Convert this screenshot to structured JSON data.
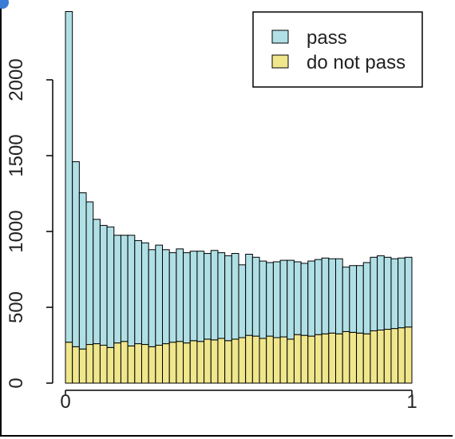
{
  "chart_data": {
    "type": "bar",
    "stacked": true,
    "title": "",
    "xlabel": "",
    "ylabel": "",
    "xlim": [
      0,
      1
    ],
    "ylim": [
      0,
      2500
    ],
    "x_ticks": [
      "0",
      "1"
    ],
    "y_ticks": [
      "0",
      "500",
      "1000",
      "1500",
      "2000"
    ],
    "bins": 50,
    "legend": {
      "position": "top-right",
      "entries": [
        "pass",
        "do not pass"
      ]
    },
    "colors": {
      "pass": "#b0e0e6",
      "do not pass": "#f0e68c",
      "outline": "#000000"
    },
    "series": [
      {
        "name": "do not pass",
        "values": [
          270,
          240,
          225,
          255,
          260,
          250,
          235,
          265,
          275,
          245,
          260,
          255,
          240,
          250,
          260,
          270,
          275,
          265,
          280,
          275,
          290,
          285,
          295,
          280,
          290,
          300,
          315,
          310,
          295,
          310,
          300,
          305,
          290,
          320,
          315,
          310,
          320,
          325,
          330,
          325,
          340,
          335,
          330,
          325,
          345,
          350,
          355,
          360,
          365,
          370
        ]
      },
      {
        "name": "pass",
        "values": [
          2180,
          1220,
          1030,
          940,
          820,
          790,
          795,
          710,
          700,
          730,
          680,
          670,
          640,
          660,
          620,
          590,
          610,
          595,
          590,
          595,
          565,
          590,
          565,
          560,
          565,
          480,
          535,
          520,
          510,
          485,
          500,
          505,
          520,
          480,
          475,
          495,
          495,
          500,
          490,
          495,
          425,
          440,
          445,
          470,
          485,
          490,
          475,
          460,
          460,
          460
        ]
      }
    ]
  }
}
